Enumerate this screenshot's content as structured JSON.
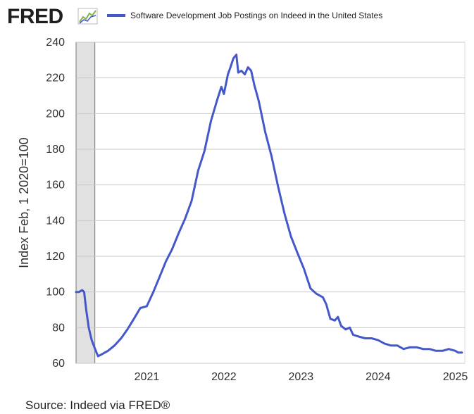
{
  "brand": {
    "logo_text": "FRED",
    "logo_icon": "line-graph-icon"
  },
  "chart_data": {
    "type": "line",
    "title": "",
    "series": [
      {
        "name": "Software Development Job Postings on Indeed in the United States",
        "color": "#4458c9",
        "points": [
          [
            "2020-02-01",
            100
          ],
          [
            "2020-02-15",
            100
          ],
          [
            "2020-03-01",
            101
          ],
          [
            "2020-03-10",
            100
          ],
          [
            "2020-03-20",
            90
          ],
          [
            "2020-04-01",
            80
          ],
          [
            "2020-04-15",
            73
          ],
          [
            "2020-05-01",
            68
          ],
          [
            "2020-05-15",
            64
          ],
          [
            "2020-06-01",
            65
          ],
          [
            "2020-07-01",
            67
          ],
          [
            "2020-08-01",
            70
          ],
          [
            "2020-09-01",
            74
          ],
          [
            "2020-10-01",
            79
          ],
          [
            "2020-11-01",
            85
          ],
          [
            "2020-12-01",
            91
          ],
          [
            "2021-01-01",
            92
          ],
          [
            "2021-02-01",
            100
          ],
          [
            "2021-03-01",
            108
          ],
          [
            "2021-04-01",
            117
          ],
          [
            "2021-05-01",
            124
          ],
          [
            "2021-06-01",
            133
          ],
          [
            "2021-07-01",
            141
          ],
          [
            "2021-08-01",
            151
          ],
          [
            "2021-09-01",
            168
          ],
          [
            "2021-10-01",
            179
          ],
          [
            "2021-11-01",
            196
          ],
          [
            "2021-12-01",
            208
          ],
          [
            "2021-12-20",
            215
          ],
          [
            "2022-01-01",
            211
          ],
          [
            "2022-01-20",
            222
          ],
          [
            "2022-02-01",
            226
          ],
          [
            "2022-02-15",
            231
          ],
          [
            "2022-03-01",
            233
          ],
          [
            "2022-03-10",
            223
          ],
          [
            "2022-03-25",
            224
          ],
          [
            "2022-04-10",
            222
          ],
          [
            "2022-04-25",
            226
          ],
          [
            "2022-05-10",
            224
          ],
          [
            "2022-05-25",
            216
          ],
          [
            "2022-06-15",
            207
          ],
          [
            "2022-07-15",
            190
          ],
          [
            "2022-08-15",
            176
          ],
          [
            "2022-09-15",
            159
          ],
          [
            "2022-10-15",
            144
          ],
          [
            "2022-11-15",
            131
          ],
          [
            "2022-12-15",
            122
          ],
          [
            "2023-01-15",
            113
          ],
          [
            "2023-02-15",
            102
          ],
          [
            "2023-03-15",
            99
          ],
          [
            "2023-04-15",
            97
          ],
          [
            "2023-05-01",
            93
          ],
          [
            "2023-05-20",
            85
          ],
          [
            "2023-06-10",
            84
          ],
          [
            "2023-06-25",
            86
          ],
          [
            "2023-07-10",
            81
          ],
          [
            "2023-08-01",
            79
          ],
          [
            "2023-08-20",
            80
          ],
          [
            "2023-09-05",
            76
          ],
          [
            "2023-10-01",
            75
          ],
          [
            "2023-11-01",
            74
          ],
          [
            "2023-12-01",
            74
          ],
          [
            "2024-01-01",
            73
          ],
          [
            "2024-02-01",
            71
          ],
          [
            "2024-03-01",
            70
          ],
          [
            "2024-04-01",
            70
          ],
          [
            "2024-05-01",
            68
          ],
          [
            "2024-06-01",
            69
          ],
          [
            "2024-07-01",
            69
          ],
          [
            "2024-08-01",
            68
          ],
          [
            "2024-09-01",
            68
          ],
          [
            "2024-10-01",
            67
          ],
          [
            "2024-11-01",
            67
          ],
          [
            "2024-12-01",
            68
          ],
          [
            "2025-01-01",
            67
          ],
          [
            "2025-01-15",
            66
          ],
          [
            "2025-02-01",
            66
          ]
        ]
      }
    ],
    "ylabel": "Index Feb, 1 2020=100",
    "xlabel": "",
    "ylim": [
      60,
      240
    ],
    "xlim": [
      "2020-02-01",
      "2025-02-15"
    ],
    "y_ticks": [
      60,
      80,
      100,
      120,
      140,
      160,
      180,
      200,
      220,
      240
    ],
    "x_ticks": [
      {
        "date": "2021-01-01",
        "label": "2021"
      },
      {
        "date": "2022-01-01",
        "label": "2022"
      },
      {
        "date": "2023-01-01",
        "label": "2023"
      },
      {
        "date": "2024-01-01",
        "label": "2024"
      },
      {
        "date": "2025-01-01",
        "label": "2025"
      }
    ],
    "recession_shading": {
      "start": "2020-02-01",
      "end": "2020-04-30",
      "color": "#e1e1e1"
    },
    "grid": true,
    "legend_position": "top"
  },
  "source": "Source: Indeed via FRED®"
}
